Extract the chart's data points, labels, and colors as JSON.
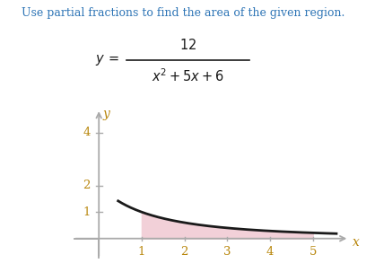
{
  "title_text": "Use partial fractions to find the area of the given region.",
  "title_color": "#2e75b6",
  "curve_color": "#1a1a1a",
  "fill_color": "#f2d0d8",
  "x_fill_start": 1,
  "x_fill_end": 5,
  "x_curve_start": 0.45,
  "x_curve_end": 5.55,
  "x_min": -0.6,
  "x_max": 5.9,
  "y_min": -0.75,
  "y_max": 5.0,
  "x_ticks": [
    1,
    2,
    3,
    4,
    5
  ],
  "y_ticks": [
    1,
    2,
    4
  ],
  "axis_color": "#aaaaaa",
  "label_color": "#b8860b",
  "xlabel": "x",
  "ylabel": "y",
  "background_color": "#ffffff",
  "title_fontsize": 9.0,
  "formula_fontsize": 10.5,
  "tick_label_fontsize": 9.5,
  "axis_label_fontsize": 10
}
